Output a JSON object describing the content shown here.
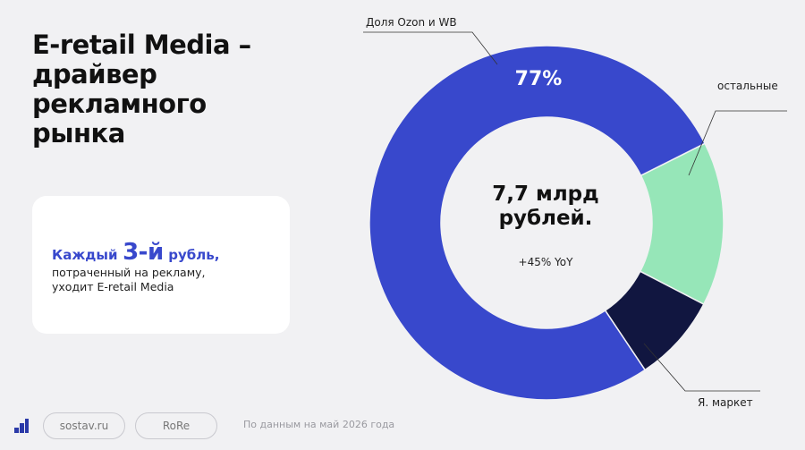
{
  "title": {
    "line1": "E-retail Media –",
    "line2": "драйвер",
    "line3": "рекламного",
    "line4": "рынка"
  },
  "card": {
    "prefix": "Каждый",
    "highlight": "3-й",
    "suffix": "рубль,",
    "line2": "потраченный на рекламу,",
    "line3": "уходит E-retail Media"
  },
  "chart_data": {
    "type": "pie",
    "donut": true,
    "center_value_line1": "7,7 млрд",
    "center_value_line2": "рублей.",
    "center_growth": "+45% YoY",
    "slices": [
      {
        "label": "Доля Ozon и WB",
        "value": 77,
        "value_label": "77%",
        "color": "#3848cc"
      },
      {
        "label": "остальные",
        "value": 15,
        "color": "#96e6b8"
      },
      {
        "label": "Я. маркет",
        "value": 8,
        "color": "#111640"
      }
    ]
  },
  "footer": {
    "logo_icon": "sostav-logo-icon",
    "pill1": "sostav.ru",
    "pill2": "RoRe",
    "source": "По данным на май 2026 года"
  },
  "colors": {
    "background": "#f1f1f3",
    "accent": "#3848cc"
  }
}
